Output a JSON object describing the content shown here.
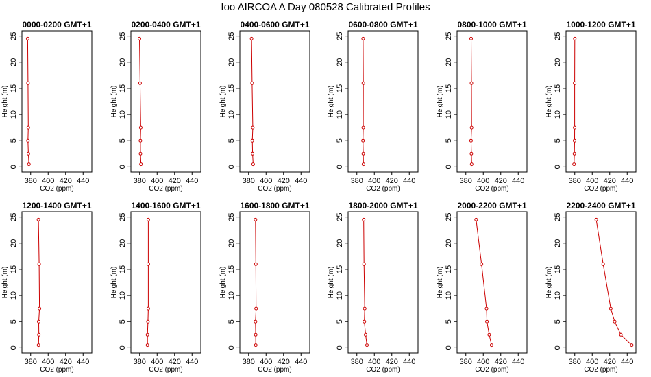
{
  "figure": {
    "title": "Ioo AIRCOA A  Day 080528  Calibrated Profiles"
  },
  "colors": {
    "line": "#cc0000",
    "axis": "#000000",
    "background": "#ffffff"
  },
  "chart_data": [
    {
      "type": "line",
      "title": "0000-0200 GMT+1",
      "xlabel": "CO2 (ppm)",
      "ylabel": "Height (m)",
      "xlim": [
        370,
        450
      ],
      "ylim": [
        -1,
        26
      ],
      "xticks": [
        380,
        400,
        420,
        440
      ],
      "yticks": [
        0,
        5,
        10,
        15,
        20,
        25
      ],
      "grid": false,
      "series": [
        {
          "x": [
            378.0,
            377.4,
            376.9,
            377.3,
            377.0,
            376.6
          ],
          "y": [
            0.5,
            2.5,
            5.0,
            7.5,
            16.0,
            24.5
          ]
        }
      ]
    },
    {
      "type": "line",
      "title": "0200-0400 GMT+1",
      "xlabel": "CO2 (ppm)",
      "ylabel": "Height (m)",
      "xlim": [
        370,
        450
      ],
      "ylim": [
        -1,
        26
      ],
      "xticks": [
        380,
        400,
        420,
        440
      ],
      "yticks": [
        0,
        5,
        10,
        15,
        20,
        25
      ],
      "grid": false,
      "series": [
        {
          "x": [
            381.5,
            381.0,
            380.9,
            381.3,
            380.5,
            379.8
          ],
          "y": [
            0.5,
            2.5,
            5.0,
            7.5,
            16.0,
            24.5
          ]
        }
      ]
    },
    {
      "type": "line",
      "title": "0400-0600 GMT+1",
      "xlabel": "CO2 (ppm)",
      "ylabel": "Height (m)",
      "xlim": [
        370,
        450
      ],
      "ylim": [
        -1,
        26
      ],
      "xticks": [
        380,
        400,
        420,
        440
      ],
      "yticks": [
        0,
        5,
        10,
        15,
        20,
        25
      ],
      "grid": false,
      "series": [
        {
          "x": [
            385.2,
            384.6,
            384.3,
            384.8,
            384.0,
            383.4
          ],
          "y": [
            0.5,
            2.5,
            5.0,
            7.5,
            16.0,
            24.5
          ]
        }
      ]
    },
    {
      "type": "line",
      "title": "0600-0800 GMT+1",
      "xlabel": "CO2 (ppm)",
      "ylabel": "Height (m)",
      "xlim": [
        370,
        450
      ],
      "ylim": [
        -1,
        26
      ],
      "xticks": [
        380,
        400,
        420,
        440
      ],
      "yticks": [
        0,
        5,
        10,
        15,
        20,
        25
      ],
      "grid": false,
      "series": [
        {
          "x": [
            387.6,
            387.3,
            387.0,
            387.3,
            387.4,
            387.2
          ],
          "y": [
            0.5,
            2.5,
            5.0,
            7.5,
            16.0,
            24.5
          ]
        }
      ]
    },
    {
      "type": "line",
      "title": "0800-1000 GMT+1",
      "xlabel": "CO2 (ppm)",
      "ylabel": "Height (m)",
      "xlim": [
        370,
        450
      ],
      "ylim": [
        -1,
        26
      ],
      "xticks": [
        380,
        400,
        420,
        440
      ],
      "yticks": [
        0,
        5,
        10,
        15,
        20,
        25
      ],
      "grid": false,
      "series": [
        {
          "x": [
            386.7,
            386.4,
            386.0,
            386.6,
            386.5,
            386.1
          ],
          "y": [
            0.5,
            2.5,
            5.0,
            7.5,
            16.0,
            24.5
          ]
        }
      ]
    },
    {
      "type": "line",
      "title": "1000-1200 GMT+1",
      "xlabel": "CO2 (ppm)",
      "ylabel": "Height (m)",
      "xlim": [
        370,
        450
      ],
      "ylim": [
        -1,
        26
      ],
      "xticks": [
        380,
        400,
        420,
        440
      ],
      "yticks": [
        0,
        5,
        10,
        15,
        20,
        25
      ],
      "grid": false,
      "series": [
        {
          "x": [
            379.2,
            379.6,
            379.8,
            379.9,
            379.9,
            380.0
          ],
          "y": [
            0.5,
            2.5,
            5.0,
            7.5,
            16.0,
            24.5
          ]
        }
      ]
    },
    {
      "type": "line",
      "title": "1200-1400 GMT+1",
      "xlabel": "CO2 (ppm)",
      "ylabel": "Height (m)",
      "xlim": [
        370,
        450
      ],
      "ylim": [
        -1,
        26
      ],
      "xticks": [
        380,
        400,
        420,
        440
      ],
      "yticks": [
        0,
        5,
        10,
        15,
        20,
        25
      ],
      "grid": false,
      "series": [
        {
          "x": [
            389.0,
            389.4,
            389.2,
            390.1,
            389.7,
            388.9
          ],
          "y": [
            0.5,
            2.5,
            5.0,
            7.5,
            16.0,
            24.5
          ]
        }
      ]
    },
    {
      "type": "line",
      "title": "1400-1600 GMT+1",
      "xlabel": "CO2 (ppm)",
      "ylabel": "Height (m)",
      "xlim": [
        370,
        450
      ],
      "ylim": [
        -1,
        26
      ],
      "xticks": [
        380,
        400,
        420,
        440
      ],
      "yticks": [
        0,
        5,
        10,
        15,
        20,
        25
      ],
      "grid": false,
      "series": [
        {
          "x": [
            389.0,
            389.0,
            389.5,
            389.9,
            389.9,
            389.9
          ],
          "y": [
            0.5,
            2.5,
            5.0,
            7.5,
            16.0,
            24.5
          ]
        }
      ]
    },
    {
      "type": "line",
      "title": "1600-1800 GMT+1",
      "xlabel": "CO2 (ppm)",
      "ylabel": "Height (m)",
      "xlim": [
        370,
        450
      ],
      "ylim": [
        -1,
        26
      ],
      "xticks": [
        380,
        400,
        420,
        440
      ],
      "yticks": [
        0,
        5,
        10,
        15,
        20,
        25
      ],
      "grid": false,
      "series": [
        {
          "x": [
            388.2,
            388.1,
            387.9,
            388.6,
            388.3,
            387.9
          ],
          "y": [
            0.5,
            2.5,
            5.0,
            7.5,
            16.0,
            24.5
          ]
        }
      ]
    },
    {
      "type": "line",
      "title": "1800-2000 GMT+1",
      "xlabel": "CO2 (ppm)",
      "ylabel": "Height (m)",
      "xlim": [
        370,
        450
      ],
      "ylim": [
        -1,
        26
      ],
      "xticks": [
        380,
        400,
        420,
        440
      ],
      "yticks": [
        0,
        5,
        10,
        15,
        20,
        25
      ],
      "grid": false,
      "series": [
        {
          "x": [
            391.6,
            390.0,
            388.6,
            389.0,
            388.2,
            387.8
          ],
          "y": [
            0.5,
            2.5,
            5.0,
            7.5,
            16.0,
            24.5
          ]
        }
      ]
    },
    {
      "type": "line",
      "title": "2000-2200 GMT+1",
      "xlabel": "CO2 (ppm)",
      "ylabel": "Height (m)",
      "xlim": [
        370,
        450
      ],
      "ylim": [
        -1,
        26
      ],
      "xticks": [
        380,
        400,
        420,
        440
      ],
      "yticks": [
        0,
        5,
        10,
        15,
        20,
        25
      ],
      "grid": false,
      "series": [
        {
          "x": [
            409.5,
            406.8,
            404.2,
            403.7,
            398.0,
            391.8
          ],
          "y": [
            0.5,
            2.5,
            5.0,
            7.5,
            16.0,
            24.5
          ]
        }
      ]
    },
    {
      "type": "line",
      "title": "2200-2400 GMT+1",
      "xlabel": "CO2 (ppm)",
      "ylabel": "Height (m)",
      "xlim": [
        370,
        450
      ],
      "ylim": [
        -1,
        26
      ],
      "xticks": [
        380,
        400,
        420,
        440
      ],
      "yticks": [
        0,
        5,
        10,
        15,
        20,
        25
      ],
      "grid": false,
      "series": [
        {
          "x": [
            445.2,
            432.8,
            425.7,
            421.2,
            412.5,
            404.6
          ],
          "y": [
            0.5,
            2.5,
            5.0,
            7.5,
            16.0,
            24.5
          ]
        }
      ]
    }
  ]
}
